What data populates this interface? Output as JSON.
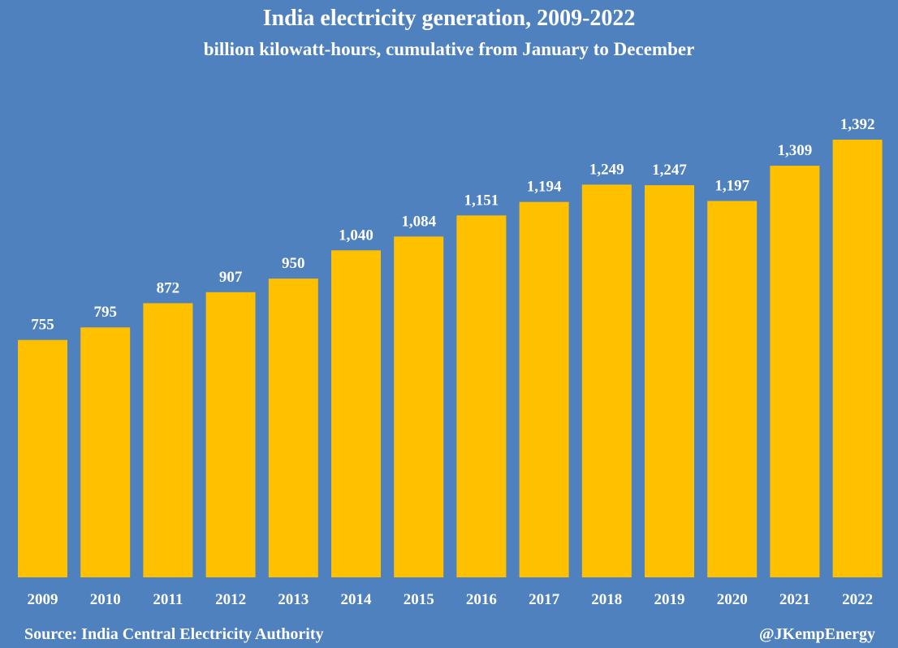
{
  "chart_data": {
    "type": "bar",
    "title": "India electricity generation, 2009-2022",
    "subtitle": "billion kilowatt-hours, cumulative from January to December",
    "categories": [
      "2009",
      "2010",
      "2011",
      "2012",
      "2013",
      "2014",
      "2015",
      "2016",
      "2017",
      "2018",
      "2019",
      "2020",
      "2021",
      "2022"
    ],
    "values": [
      755,
      795,
      872,
      907,
      950,
      1040,
      1084,
      1151,
      1194,
      1249,
      1247,
      1197,
      1309,
      1392
    ],
    "value_labels": [
      "755",
      "795",
      "872",
      "907",
      "950",
      "1,040",
      "1,084",
      "1,151",
      "1,194",
      "1,249",
      "1,247",
      "1,197",
      "1,309",
      "1,392"
    ],
    "ylim": [
      0,
      1392
    ],
    "grid": false,
    "bar_color": "#ffc000",
    "background_color": "#4e81bd"
  },
  "footer": {
    "source": "Source: India Central Electricity Authority",
    "handle": "@JKempEnergy"
  }
}
